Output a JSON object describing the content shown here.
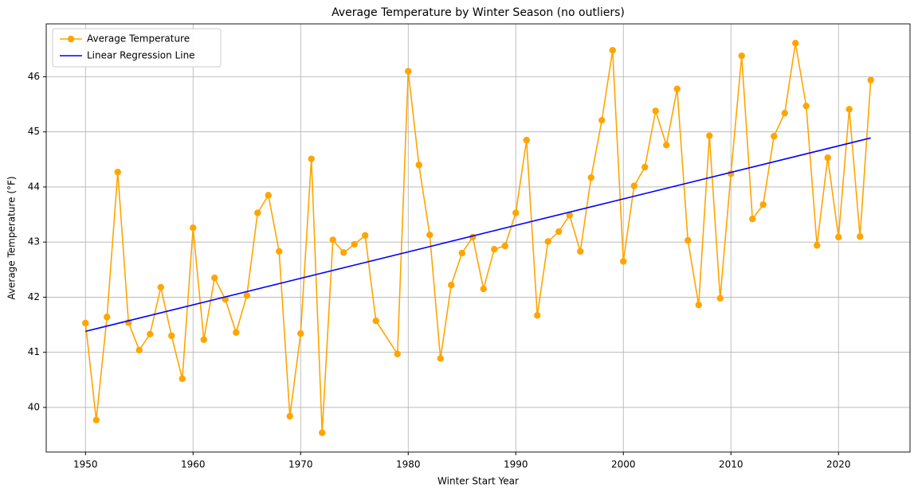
{
  "chart_data": {
    "type": "line",
    "title": "Average Temperature by Winter Season (no outliers)",
    "xlabel": "Winter Start Year",
    "ylabel": "Average Temperature (°F)",
    "series": [
      {
        "name": "Average Temperature",
        "color": "#ffa500",
        "marker": true,
        "x": [
          1950,
          1951,
          1952,
          1953,
          1954,
          1955,
          1956,
          1957,
          1958,
          1959,
          1960,
          1961,
          1962,
          1963,
          1964,
          1965,
          1966,
          1967,
          1968,
          1969,
          1970,
          1971,
          1972,
          1973,
          1974,
          1975,
          1976,
          1977,
          1979,
          1980,
          1981,
          1982,
          1983,
          1984,
          1985,
          1986,
          1987,
          1988,
          1989,
          1990,
          1991,
          1992,
          1993,
          1994,
          1995,
          1996,
          1997,
          1998,
          1999,
          2000,
          2001,
          2002,
          2003,
          2004,
          2005,
          2006,
          2007,
          2008,
          2009,
          2010,
          2011,
          2012,
          2013,
          2014,
          2015,
          2016,
          2017,
          2018,
          2019,
          2020,
          2021,
          2022,
          2023
        ],
        "values": [
          41.53,
          39.77,
          41.64,
          44.27,
          41.54,
          41.04,
          41.33,
          42.18,
          41.3,
          40.52,
          43.26,
          41.23,
          42.35,
          41.96,
          41.36,
          42.03,
          43.53,
          43.85,
          42.83,
          39.84,
          41.34,
          44.51,
          39.54,
          43.04,
          42.81,
          42.96,
          43.12,
          41.57,
          40.97,
          46.1,
          44.4,
          43.13,
          40.89,
          42.22,
          42.8,
          43.09,
          42.15,
          42.87,
          42.93,
          43.53,
          44.85,
          41.67,
          43.01,
          43.19,
          43.49,
          42.83,
          44.17,
          45.21,
          46.48,
          42.65,
          44.02,
          44.36,
          45.38,
          44.76,
          45.78,
          43.03,
          41.86,
          44.93,
          41.98,
          44.24,
          46.38,
          43.42,
          43.68,
          44.92,
          45.34,
          46.61,
          45.47,
          42.94,
          44.53,
          43.09,
          45.41,
          43.1,
          45.94
        ]
      },
      {
        "name": "Linear Regression Line",
        "color": "#0000ff",
        "marker": false,
        "x": [
          1950,
          2023
        ],
        "values": [
          41.38,
          44.89
        ]
      }
    ],
    "xlim": [
      1946.35,
      2026.65
    ],
    "xticks": [
      1950,
      1960,
      1970,
      1980,
      1990,
      2000,
      2010,
      2020
    ],
    "ylim": [
      39.19,
      46.96
    ],
    "yticks": [
      40,
      41,
      42,
      43,
      44,
      45,
      46
    ],
    "grid": true,
    "legend": "upper left"
  }
}
